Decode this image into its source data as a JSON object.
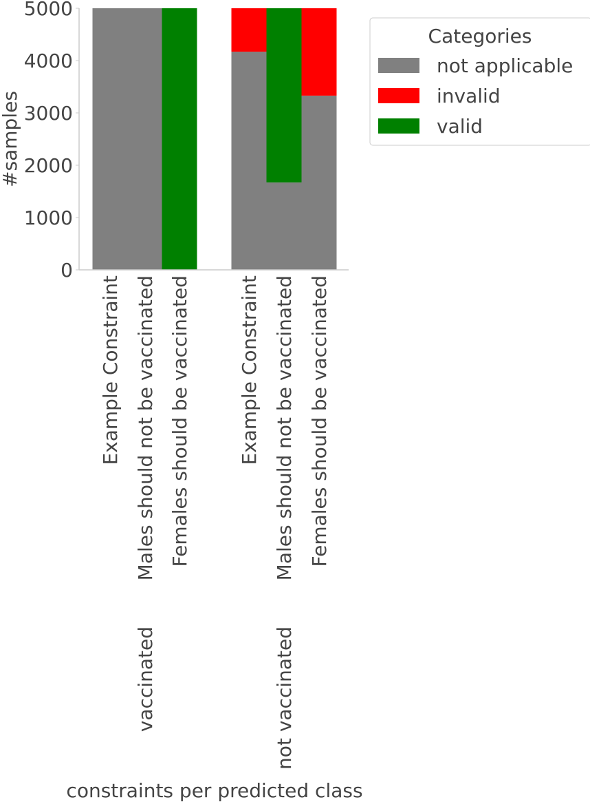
{
  "chart_data": {
    "type": "bar",
    "stacked": true,
    "xlabel": "constraints per predicted class",
    "ylabel": "#samples",
    "ylim": [
      0,
      5000
    ],
    "yticks": [
      0,
      1000,
      2000,
      3000,
      4000,
      5000
    ],
    "grid": false,
    "legend": {
      "title": "Categories",
      "placement": "top-right outside plot",
      "entries": [
        "not applicable",
        "invalid",
        "valid"
      ]
    },
    "colors": {
      "not applicable": "#808080",
      "invalid": "#ff0000",
      "valid": "#008000"
    },
    "categories": [
      "Example Constraint",
      "Males should not be vaccinated",
      "Females should be vaccinated",
      "Example Constraint",
      "Males should not be vaccinated",
      "Females should be vaccinated"
    ],
    "group_labels": [
      "vaccinated",
      "not vaccinated"
    ],
    "series": [
      {
        "name": "not applicable",
        "values": [
          5000,
          5000,
          0,
          4170,
          1670,
          3330
        ]
      },
      {
        "name": "invalid",
        "values": [
          0,
          0,
          0,
          830,
          0,
          1670
        ]
      },
      {
        "name": "valid",
        "values": [
          0,
          0,
          5000,
          0,
          3330,
          0
        ]
      }
    ]
  }
}
